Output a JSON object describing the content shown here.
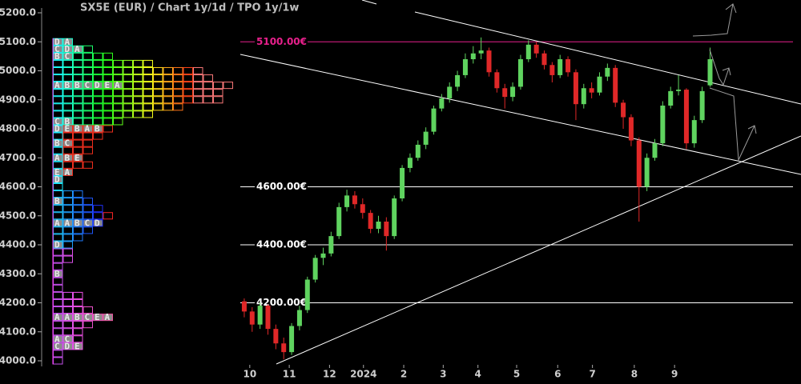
{
  "title": "SX5E (EUR) /  Chart 1y/1d / TPO 1y/1w",
  "chart_data": {
    "type": "candlestick",
    "ylim": [
      4000,
      5200
    ],
    "yticks": [
      {
        "value": 4000,
        "label": "4000.0"
      },
      {
        "value": 4100,
        "label": "4100.0"
      },
      {
        "value": 4200,
        "label": "4200.0"
      },
      {
        "value": 4300,
        "label": "4300.0"
      },
      {
        "value": 4400,
        "label": "4400.0"
      },
      {
        "value": 4500,
        "label": "4500.0"
      },
      {
        "value": 4600,
        "label": "4600.0"
      },
      {
        "value": 4700,
        "label": "4700.0"
      },
      {
        "value": 4800,
        "label": "4800.0"
      },
      {
        "value": 4900,
        "label": "4900.0"
      },
      {
        "value": 5000,
        "label": "5000.0"
      },
      {
        "value": 5100,
        "label": "5100.0"
      },
      {
        "value": 5200,
        "label": "5200.0"
      }
    ],
    "xlim": [
      -0.5,
      69.5
    ],
    "xticks": [
      {
        "value": 0.7,
        "label": "10"
      },
      {
        "value": 5.7,
        "label": "11"
      },
      {
        "value": 10.8,
        "label": "12"
      },
      {
        "value": 15.1,
        "label": "2024"
      },
      {
        "value": 20.2,
        "label": "2"
      },
      {
        "value": 25.2,
        "label": "3"
      },
      {
        "value": 29.6,
        "label": "4"
      },
      {
        "value": 34.5,
        "label": "5"
      },
      {
        "value": 39.7,
        "label": "6"
      },
      {
        "value": 44.1,
        "label": "7"
      },
      {
        "value": 49.4,
        "label": "8"
      },
      {
        "value": 54.5,
        "label": "9"
      }
    ],
    "up_color": "#5fd35f",
    "down_color": "#e02828",
    "open": [
      4205,
      4170,
      4125,
      4190,
      4110,
      4060,
      4030,
      4120,
      4175,
      4280,
      4355,
      4370,
      4430,
      4530,
      4570,
      4540,
      4510,
      4455,
      4480,
      4430,
      4560,
      4665,
      4700,
      4745,
      4790,
      4870,
      4905,
      4945,
      4985,
      5040,
      5060,
      5070,
      4995,
      4940,
      4910,
      4945,
      5040,
      5090,
      5060,
      5020,
      4985,
      5040,
      4995,
      4885,
      4940,
      4925,
      4980,
      5010,
      4890,
      4840,
      4760,
      4600,
      4700,
      4750,
      4880,
      4930,
      4935,
      4750,
      4830,
      4950
    ],
    "high": [
      4215,
      4185,
      4200,
      4195,
      4125,
      4080,
      4130,
      4190,
      4290,
      4365,
      4390,
      4445,
      4545,
      4590,
      4585,
      4560,
      4520,
      4500,
      4495,
      4570,
      4675,
      4715,
      4760,
      4805,
      4880,
      4920,
      4960,
      5000,
      5060,
      5085,
      5115,
      5080,
      5005,
      4955,
      4960,
      5055,
      5105,
      5100,
      5070,
      5030,
      5055,
      5050,
      5005,
      4955,
      4960,
      4995,
      5025,
      5020,
      4900,
      4850,
      4770,
      4715,
      4765,
      4895,
      4945,
      4985,
      4940,
      4845,
      4945,
      5080
    ],
    "low": [
      4150,
      4100,
      4110,
      4090,
      4040,
      4005,
      4020,
      4105,
      4165,
      4270,
      4330,
      4360,
      4420,
      4515,
      4525,
      4490,
      4440,
      4440,
      4380,
      4420,
      4550,
      4650,
      4690,
      4730,
      4780,
      4860,
      4890,
      4930,
      4975,
      5025,
      5040,
      4980,
      4925,
      4870,
      4895,
      4935,
      5030,
      5045,
      5005,
      4960,
      4975,
      4980,
      4830,
      4870,
      4905,
      4915,
      4965,
      4875,
      4800,
      4740,
      4480,
      4585,
      4690,
      4740,
      4870,
      4915,
      4730,
      4735,
      4820,
      4945
    ],
    "close": [
      4170,
      4125,
      4190,
      4110,
      4060,
      4030,
      4120,
      4175,
      4280,
      4355,
      4370,
      4430,
      4530,
      4570,
      4540,
      4510,
      4455,
      4480,
      4430,
      4560,
      4665,
      4700,
      4745,
      4790,
      4870,
      4905,
      4945,
      4985,
      5040,
      5060,
      5070,
      4995,
      4940,
      4910,
      4945,
      5040,
      5090,
      5060,
      5020,
      4985,
      5040,
      4995,
      4885,
      4940,
      4925,
      4980,
      5010,
      4890,
      4840,
      4760,
      4600,
      4700,
      4750,
      4880,
      4930,
      4935,
      4750,
      4830,
      4930,
      5040
    ],
    "levels": [
      {
        "value": 5100,
        "label": "5100.00€",
        "color": "#e8208c"
      },
      {
        "value": 4600,
        "label": "4600.00€",
        "color": "#ffffff"
      },
      {
        "value": 4400,
        "label": "4400.00€",
        "color": "#ffffff"
      },
      {
        "value": 4200,
        "label": "4200.00€",
        "color": "#ffffff"
      }
    ],
    "profile": {
      "rows": [
        {
          "price": 5100,
          "count": 2,
          "letters": "DA"
        },
        {
          "price": 5075,
          "count": 4,
          "letters": "CDA"
        },
        {
          "price": 5050,
          "count": 6,
          "letters": "BC"
        },
        {
          "price": 5025,
          "count": 10
        },
        {
          "price": 5000,
          "count": 15
        },
        {
          "price": 4975,
          "count": 16
        },
        {
          "price": 4950,
          "count": 18,
          "letters": "ABBCDEA"
        },
        {
          "price": 4925,
          "count": 17
        },
        {
          "price": 4900,
          "count": 17
        },
        {
          "price": 4875,
          "count": 13
        },
        {
          "price": 4850,
          "count": 10
        },
        {
          "price": 4825,
          "count": 7,
          "letters": "CB"
        },
        {
          "price": 4800,
          "count": 6,
          "letters": "DEBAB"
        },
        {
          "price": 4775,
          "count": 5
        },
        {
          "price": 4750,
          "count": 4,
          "letters": "BC"
        },
        {
          "price": 4725,
          "count": 4
        },
        {
          "price": 4700,
          "count": 3,
          "letters": "ABE"
        },
        {
          "price": 4675,
          "count": 4
        },
        {
          "price": 4650,
          "count": 2,
          "letters": "EA"
        },
        {
          "price": 4625,
          "count": 1,
          "letters": "D"
        },
        {
          "price": 4600,
          "count": 1
        },
        {
          "price": 4575,
          "count": 3
        },
        {
          "price": 4550,
          "count": 4,
          "letters": "B"
        },
        {
          "price": 4525,
          "count": 5
        },
        {
          "price": 4500,
          "count": 6
        },
        {
          "price": 4475,
          "count": 5,
          "letters": "AABCD"
        },
        {
          "price": 4450,
          "count": 4
        },
        {
          "price": 4425,
          "count": 3
        },
        {
          "price": 4400,
          "count": 2,
          "letters": "D"
        },
        {
          "price": 4375,
          "count": 2
        },
        {
          "price": 4350,
          "count": 2
        },
        {
          "price": 4325,
          "count": 1
        },
        {
          "price": 4300,
          "count": 1,
          "letters": "B"
        },
        {
          "price": 4275,
          "count": 1
        },
        {
          "price": 4250,
          "count": 1
        },
        {
          "price": 4225,
          "count": 3
        },
        {
          "price": 4200,
          "count": 3
        },
        {
          "price": 4175,
          "count": 4
        },
        {
          "price": 4150,
          "count": 6,
          "letters": "AABCEA"
        },
        {
          "price": 4125,
          "count": 4
        },
        {
          "price": 4100,
          "count": 3
        },
        {
          "price": 4075,
          "count": 3,
          "letters": "AC"
        },
        {
          "price": 4050,
          "count": 3,
          "letters": "CDE"
        },
        {
          "price": 4025,
          "count": 1
        },
        {
          "price": 4000,
          "count": 1
        }
      ]
    }
  }
}
